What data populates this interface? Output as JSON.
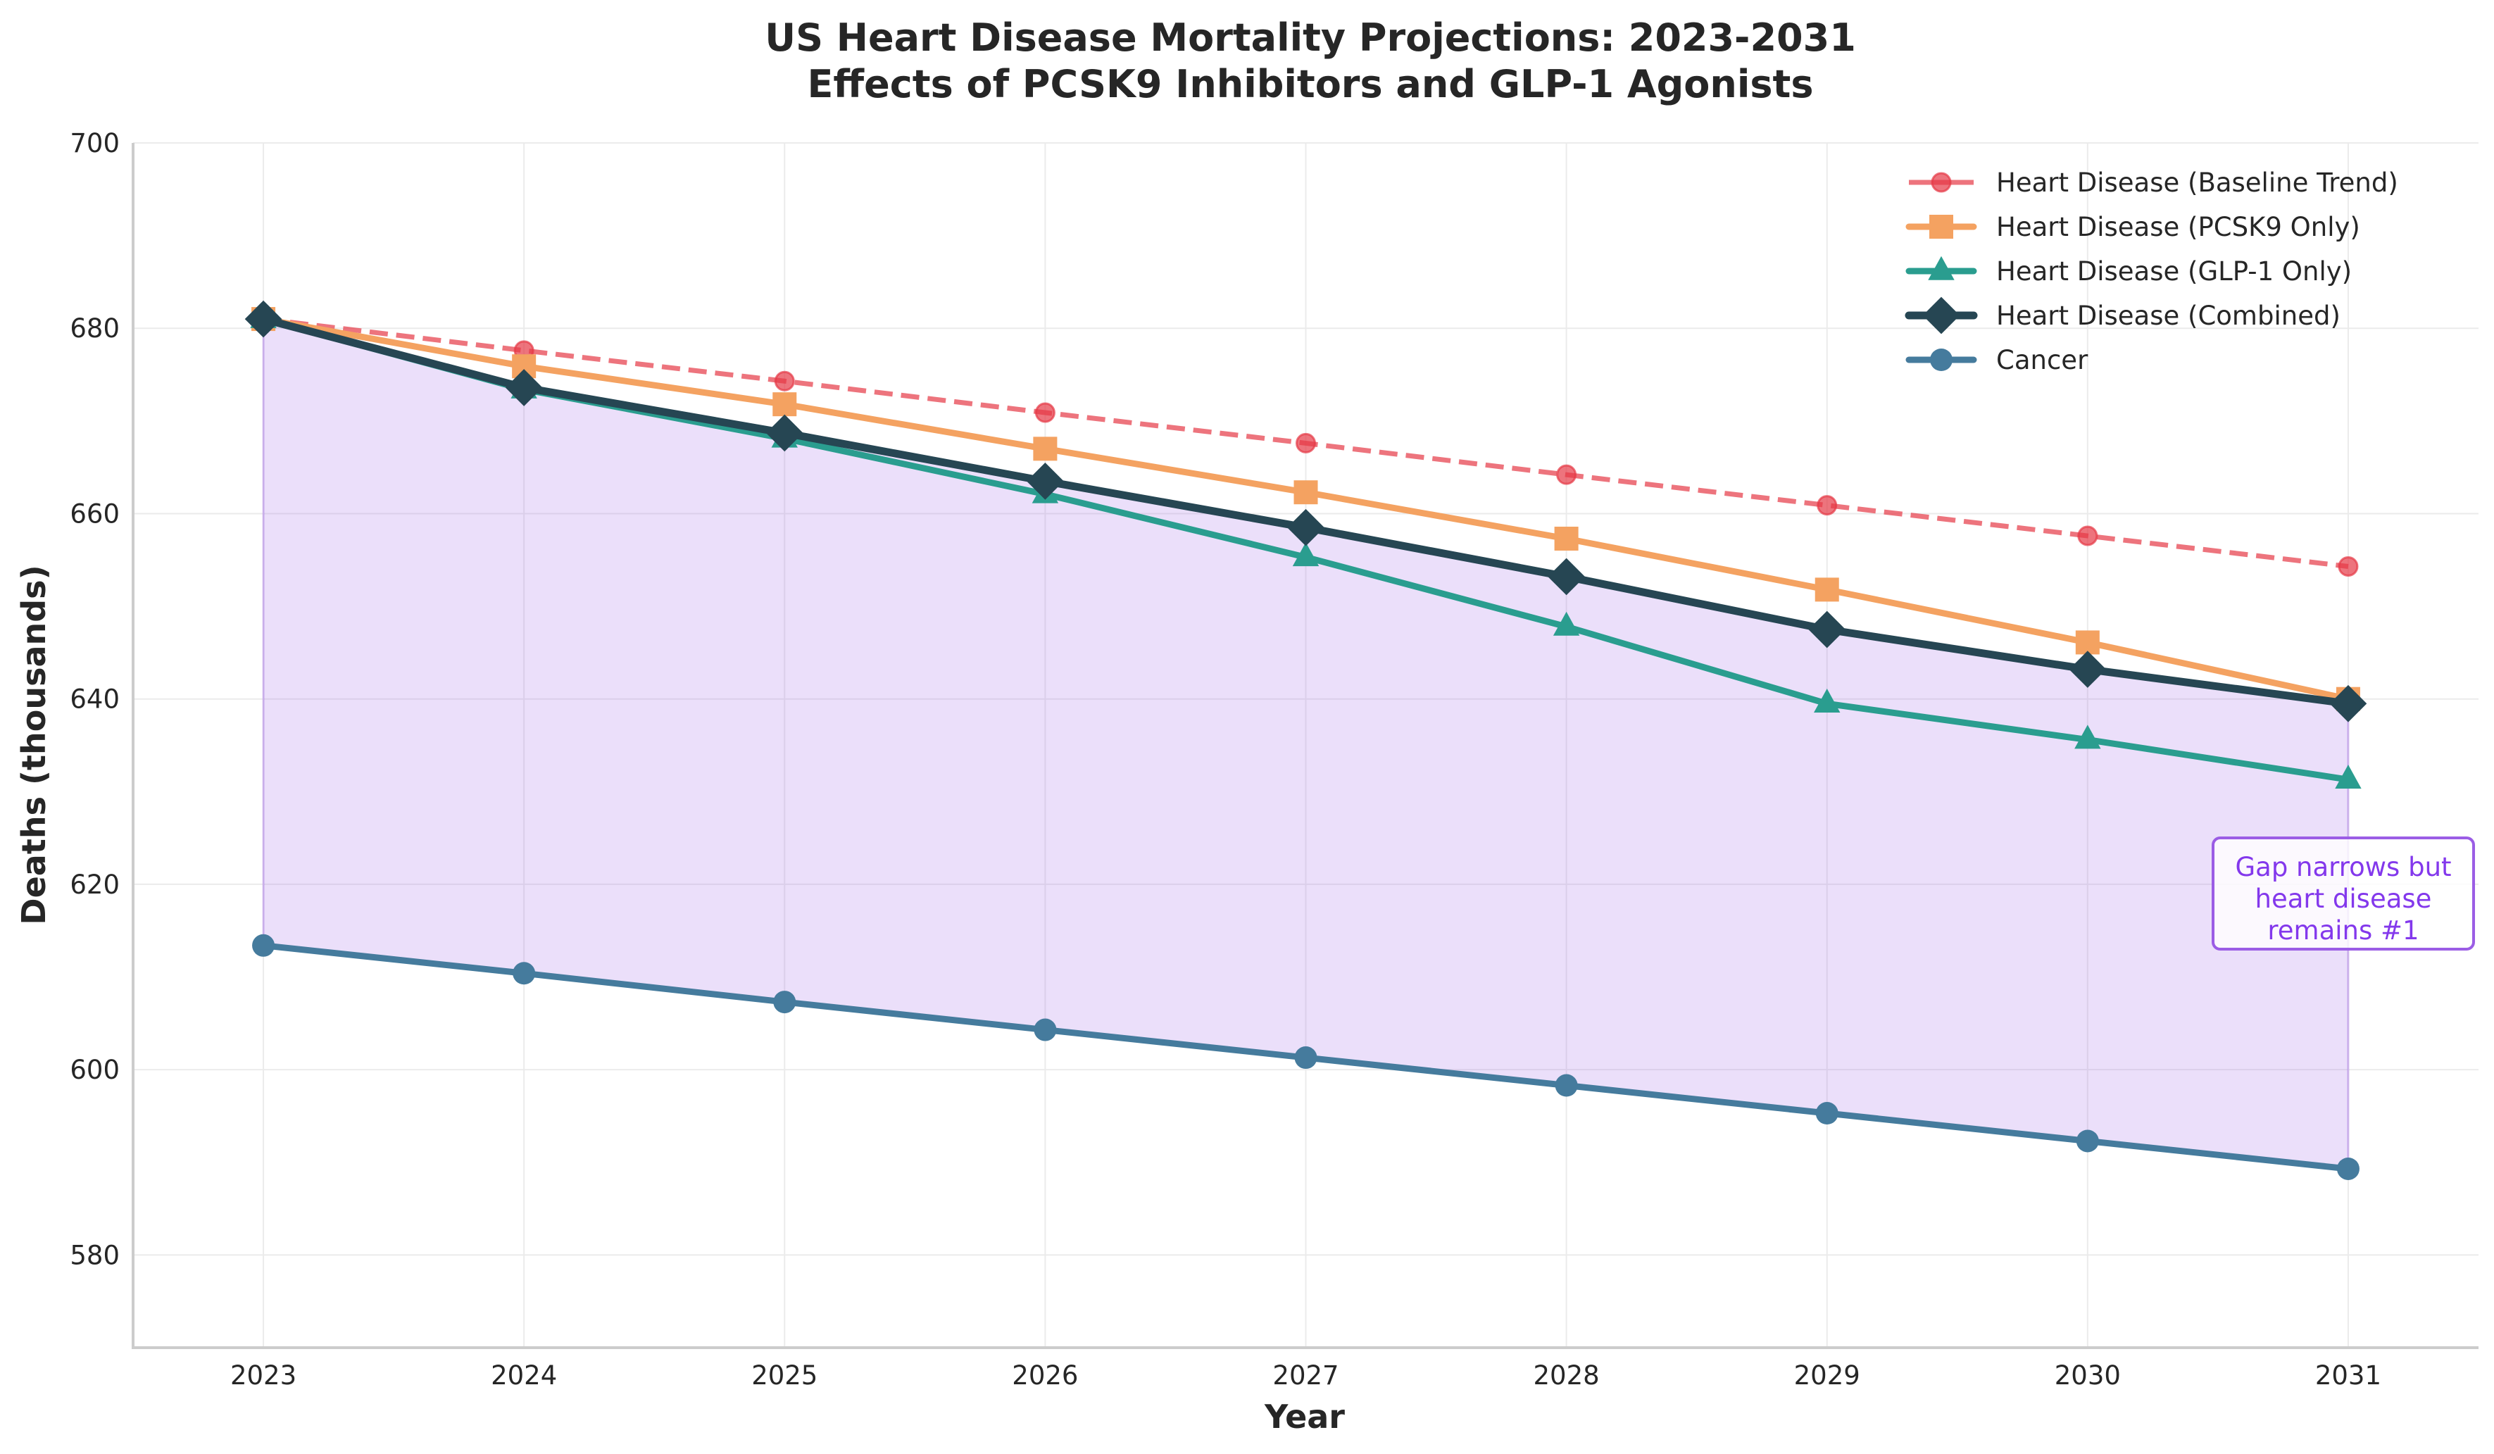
{
  "chart_data": {
    "type": "line",
    "title": "US Heart Disease Mortality Projections: 2023-2031",
    "subtitle": "Effects of PCSK9 Inhibitors and GLP-1 Agonists",
    "xlabel": "Year",
    "ylabel": "Deaths (thousands)",
    "x": [
      2023,
      2024,
      2025,
      2026,
      2027,
      2028,
      2029,
      2030,
      2031
    ],
    "xticks": [
      "2023",
      "2024",
      "2025",
      "2026",
      "2027",
      "2028",
      "2029",
      "2030",
      "2031"
    ],
    "xlim": [
      2022.5,
      2031.5
    ],
    "ylim": [
      570,
      700
    ],
    "yticks": [
      580,
      600,
      620,
      640,
      660,
      680,
      700
    ],
    "grid": true,
    "legend_position": "top-right",
    "series": [
      {
        "name": "Heart Disease (Baseline Trend)",
        "color": "#E63946",
        "linestyle": "dashed",
        "marker": "circle",
        "values": [
          681.0,
          677.6,
          674.3,
          670.9,
          667.6,
          664.2,
          660.9,
          657.6,
          654.3
        ]
      },
      {
        "name": "Heart Disease (PCSK9 Only)",
        "color": "#F4A261",
        "linestyle": "solid",
        "marker": "square",
        "values": [
          681.0,
          675.9,
          671.8,
          667.0,
          662.3,
          657.3,
          651.8,
          646.1,
          640.0
        ]
      },
      {
        "name": "Heart Disease (GLP-1 Only)",
        "color": "#2A9D8F",
        "linestyle": "solid",
        "marker": "triangle",
        "values": [
          681.0,
          673.4,
          668.1,
          662.1,
          655.3,
          647.8,
          639.5,
          635.6,
          631.3
        ]
      },
      {
        "name": "Heart Disease (Combined)",
        "color": "#264653",
        "linestyle": "solid",
        "marker": "diamond",
        "values": [
          681.0,
          673.6,
          668.7,
          663.5,
          658.5,
          653.2,
          647.5,
          643.2,
          639.5
        ]
      },
      {
        "name": "Cancer",
        "color": "#457B9D",
        "linestyle": "solid",
        "marker": "circle",
        "values": [
          613.4,
          610.4,
          607.3,
          604.3,
          601.3,
          598.3,
          595.3,
          592.3,
          589.3
        ]
      }
    ],
    "fill_between": {
      "upper_series": "Heart Disease (Combined)",
      "lower_series": "Cancer",
      "color": "#9B5DE5",
      "opacity": 0.2
    },
    "annotations": [
      {
        "lines": [
          "Gap narrows but",
          "heart disease",
          "remains #1"
        ],
        "x": 2031,
        "y": 618,
        "text_color": "#8338EC",
        "border_color": "#9B5DE5"
      }
    ]
  }
}
